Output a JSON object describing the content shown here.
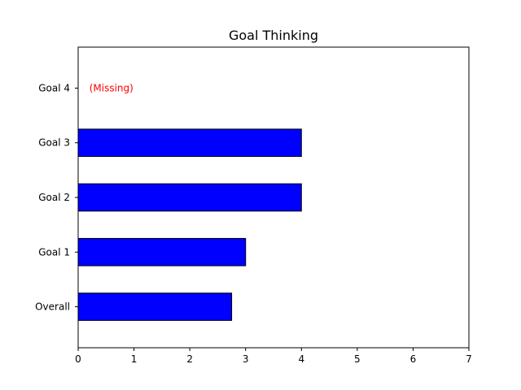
{
  "chart_data": {
    "type": "bar",
    "orientation": "horizontal",
    "title": "Goal Thinking",
    "xlabel": "",
    "ylabel": "",
    "categories": [
      "Overall",
      "Goal 1",
      "Goal 2",
      "Goal 3",
      "Goal 4"
    ],
    "values": [
      2.75,
      3,
      4,
      4,
      null
    ],
    "xlim": [
      0,
      7
    ],
    "xticks": [
      0,
      1,
      2,
      3,
      4,
      5,
      6,
      7
    ],
    "grid": false,
    "bar_color": "#0000ff",
    "bar_edge_color": "#000000",
    "annotations": [
      {
        "category": "Goal 4",
        "text": "(Missing)",
        "color": "#ff0000"
      }
    ]
  }
}
